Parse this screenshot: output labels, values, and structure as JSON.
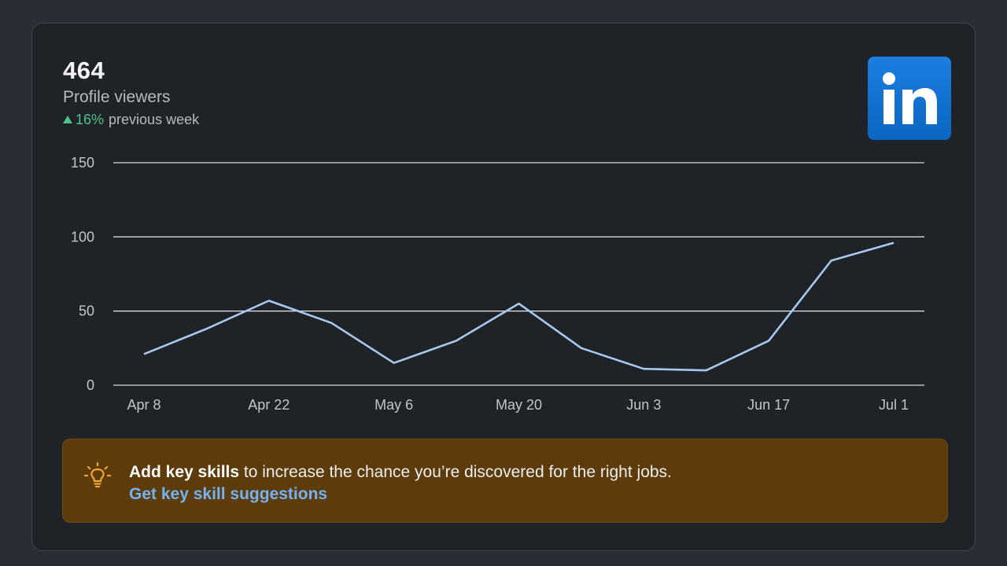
{
  "stats": {
    "value": "464",
    "label": "Profile viewers",
    "change_pct": "16%",
    "change_suffix": "previous week"
  },
  "logo": {
    "icon": "linkedin-logo",
    "text": "in"
  },
  "chart_data": {
    "type": "line",
    "x_ticks": [
      "Apr 8",
      "Apr 22",
      "May 6",
      "May 20",
      "Jun 3",
      "Jun 17",
      "Jul 1"
    ],
    "y_ticks": [
      "0",
      "50",
      "100",
      "150"
    ],
    "ylim": [
      0,
      150
    ],
    "grid": true,
    "series": [
      {
        "x": [
          "Apr 8",
          "Apr 15",
          "Apr 22",
          "Apr 29",
          "May 6",
          "May 13",
          "May 20",
          "May 27",
          "Jun 3",
          "Jun 10",
          "Jun 17",
          "Jun 24",
          "Jul 1"
        ],
        "values": [
          21,
          38,
          57,
          42,
          15,
          30,
          55,
          25,
          11,
          10,
          30,
          84,
          96
        ]
      }
    ],
    "colors": {
      "line": "#a8c8f0",
      "grid": "#d6d8db"
    }
  },
  "banner": {
    "icon": "lightbulb-icon",
    "bold_text": "Add key skills",
    "text": " to increase the chance you’re discovered for the right jobs.",
    "link": "Get key skill suggestions",
    "colors": {
      "background": "#5d3b0b",
      "link": "#74b2f2",
      "icon": "#f0a437"
    }
  }
}
